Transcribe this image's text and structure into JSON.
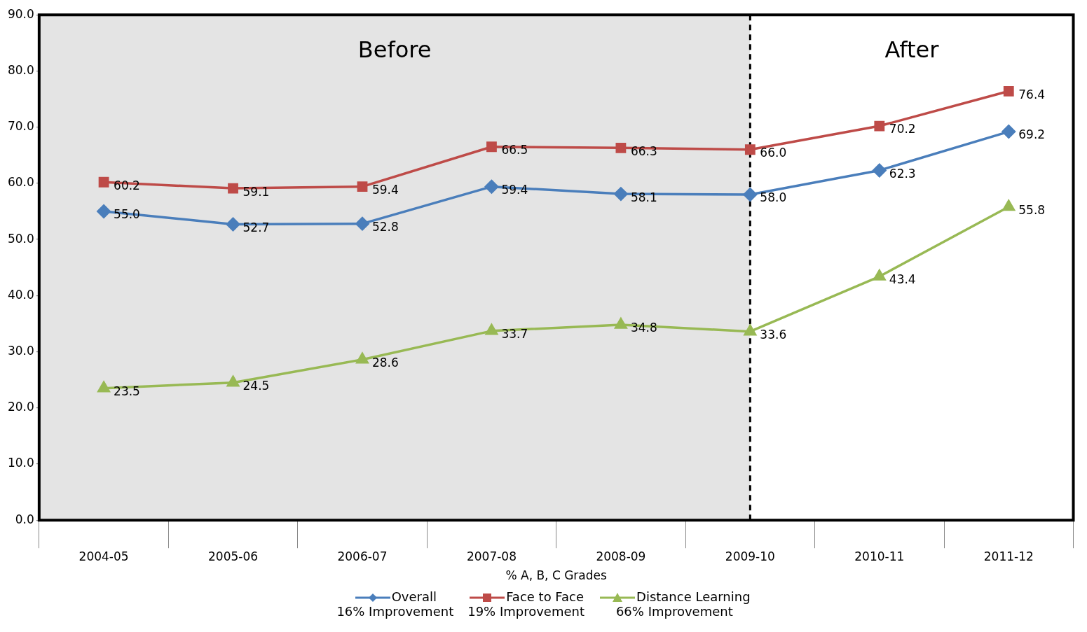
{
  "chart_data": {
    "type": "line",
    "xlabel": "% A, B, C Grades",
    "categories": [
      "2004-05",
      "2005-06",
      "2006-07",
      "2007-08",
      "2008-09",
      "2009-10",
      "2010-11",
      "2011-12"
    ],
    "series": [
      {
        "name": "Overall",
        "color": "#4a7ebb",
        "marker": "diamond",
        "values": [
          55.0,
          52.7,
          52.8,
          59.4,
          58.1,
          58.0,
          62.3,
          69.2
        ],
        "value_labels": [
          "55.0",
          "52.7",
          "52.8",
          "59.4",
          "58.1",
          "58.0",
          "62.3",
          "69.2"
        ]
      },
      {
        "name": "Face to Face",
        "color": "#be4b48",
        "marker": "square",
        "values": [
          60.2,
          59.1,
          59.4,
          66.5,
          66.3,
          66.0,
          70.2,
          76.4
        ],
        "value_labels": [
          "60.2",
          "59.1",
          "59.4",
          "66.5",
          "66.3",
          "66.0",
          "70.2",
          "76.4"
        ]
      },
      {
        "name": "Distance Learning",
        "color": "#98b954",
        "marker": "triangle",
        "values": [
          23.5,
          24.5,
          28.6,
          33.7,
          34.8,
          33.6,
          43.4,
          55.8
        ],
        "value_labels": [
          "23.5",
          "24.5",
          "28.6",
          "33.7",
          "34.8",
          "33.6",
          "43.4",
          "55.8"
        ]
      }
    ],
    "ylim": [
      0,
      90
    ],
    "yticks": [
      {
        "value": 0,
        "label": "0.0"
      },
      {
        "value": 10,
        "label": "10.0"
      },
      {
        "value": 20,
        "label": "20.0"
      },
      {
        "value": 30,
        "label": "30.0"
      },
      {
        "value": 40,
        "label": "40.0"
      },
      {
        "value": 50,
        "label": "50.0"
      },
      {
        "value": 60,
        "label": "60.0"
      },
      {
        "value": 70,
        "label": "70.0"
      },
      {
        "value": 80,
        "label": "80.0"
      },
      {
        "value": 90,
        "label": "90.0"
      }
    ],
    "grid": "y",
    "legend": "bottom",
    "line_style": "solid",
    "ref_lines": [
      {
        "axis": "x",
        "value": "2009-10",
        "line_style": "dashed",
        "color": "#000000"
      }
    ],
    "bands": [
      {
        "axis": "x",
        "from": "2004-05",
        "to": "2009-10",
        "label": "Before",
        "color": "#e4e4e4"
      },
      {
        "axis": "x",
        "from": "2009-10",
        "to": "2011-12",
        "label": "After",
        "color": "#ffffff"
      }
    ],
    "annotations": [
      "16% Improvement",
      "19% Improvement",
      "66% Improvement"
    ]
  }
}
